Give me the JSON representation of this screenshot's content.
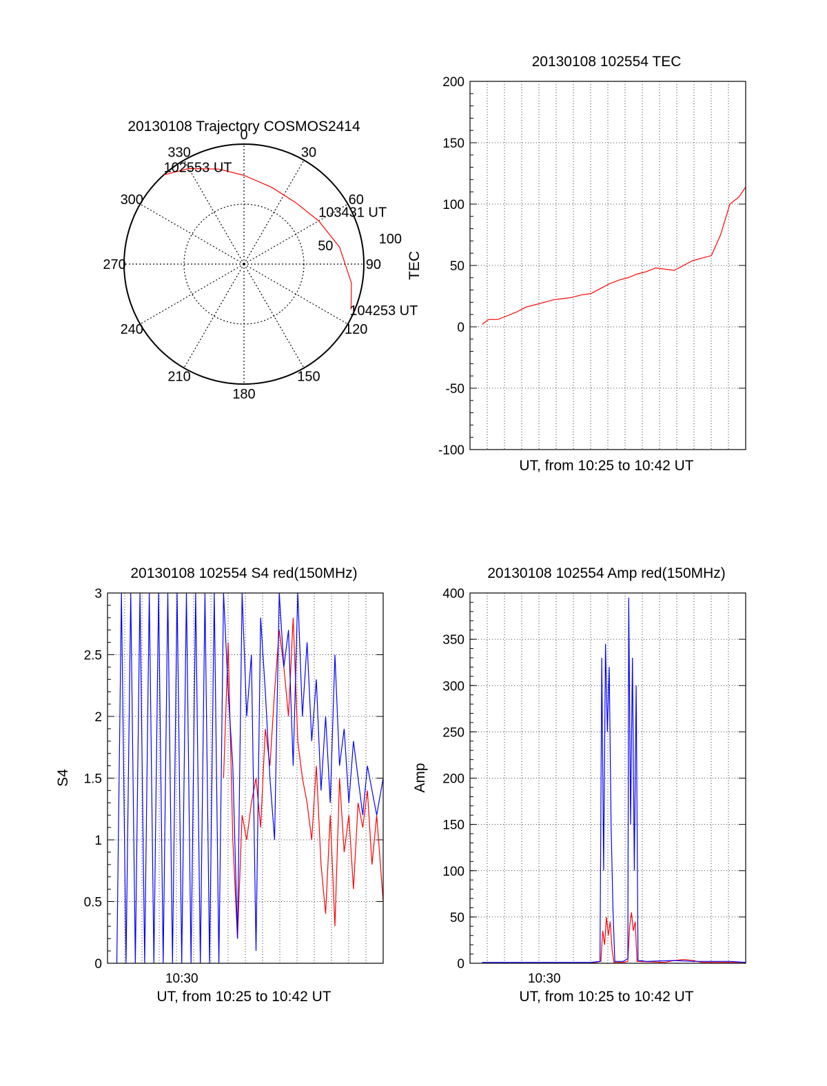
{
  "colors": {
    "red": "#ff0000",
    "blue": "#0000ff",
    "grid": "#000000"
  },
  "chart_data": [
    {
      "id": "trajectory",
      "type": "scatter",
      "subtype": "polar",
      "title": "20130108 Trajectory COSMOS2414",
      "angle_labels": [
        "0",
        "30",
        "60",
        "90",
        "120",
        "150",
        "180",
        "210",
        "240",
        "270",
        "300",
        "330"
      ],
      "radial_labels": [
        "50",
        "100"
      ],
      "rlim": [
        0,
        100
      ],
      "direction": "clockwise, 0 at top",
      "path": [
        {
          "az": 318,
          "zen": 100
        },
        {
          "az": 330,
          "zen": 92
        },
        {
          "az": 345,
          "zen": 82
        },
        {
          "az": 0,
          "zen": 74
        },
        {
          "az": 20,
          "zen": 68
        },
        {
          "az": 40,
          "zen": 67
        },
        {
          "az": 60,
          "zen": 72
        },
        {
          "az": 80,
          "zen": 81
        },
        {
          "az": 100,
          "zen": 91
        },
        {
          "az": 113,
          "zen": 97
        }
      ],
      "annotations": [
        {
          "text": "102553 UT",
          "az": 318,
          "zen": 100
        },
        {
          "text": "103431 UT",
          "az": 57,
          "zen": 70
        },
        {
          "text": "104253 UT",
          "az": 113,
          "zen": 97
        }
      ],
      "grid": true
    },
    {
      "id": "tec",
      "type": "line",
      "title": "20130108 102554 TEC",
      "xlabel": "UT, from 10:25 to 10:42 UT",
      "ylabel": "TEC",
      "ylim": [
        -100,
        200
      ],
      "yticks": [
        "-100",
        "-50",
        "0",
        "50",
        "100",
        "150",
        "200"
      ],
      "xlim": [
        10.42,
        10.717
      ],
      "grid": true,
      "series": [
        {
          "color": "red",
          "x": [
            10.433,
            10.44,
            10.45,
            10.46,
            10.47,
            10.48,
            10.49,
            10.5,
            10.51,
            10.52,
            10.53,
            10.54,
            10.55,
            10.56,
            10.57,
            10.58,
            10.59,
            10.6,
            10.61,
            10.62,
            10.63,
            10.64,
            10.65,
            10.66,
            10.67,
            10.68,
            10.69,
            10.7,
            10.71,
            10.717
          ],
          "y": [
            2,
            6,
            6,
            9,
            12,
            16,
            18,
            20,
            22,
            23,
            24,
            26,
            27,
            31,
            35,
            38,
            40,
            43,
            45,
            48,
            47,
            46,
            50,
            54,
            56,
            58,
            75,
            100,
            106,
            114
          ]
        }
      ]
    },
    {
      "id": "s4",
      "type": "line",
      "title": "20130108 102554 S4 red(150MHz)",
      "xlabel": "UT, from 10:25 to 10:42 UT",
      "xticklabels": [
        {
          "x": 10.5,
          "label": "10:30"
        }
      ],
      "ylabel": "S4",
      "ylim": [
        0,
        3
      ],
      "yticks": [
        "0",
        "0.5",
        "1",
        "1.5",
        "2",
        "2.5",
        "3"
      ],
      "xlim": [
        10.42,
        10.717
      ],
      "grid": true,
      "series": [
        {
          "color": "red",
          "x": [
            10.545,
            10.55,
            10.555,
            10.56,
            10.565,
            10.57,
            10.575,
            10.58,
            10.585,
            10.59,
            10.595,
            10.6,
            10.605,
            10.61,
            10.615,
            10.62,
            10.625,
            10.63,
            10.635,
            10.64,
            10.645,
            10.65,
            10.655,
            10.66,
            10.665,
            10.67,
            10.675,
            10.68,
            10.685,
            10.69,
            10.695,
            10.7,
            10.705,
            10.71,
            10.717
          ],
          "y": [
            1.5,
            2.6,
            1.0,
            0.2,
            1.2,
            1.0,
            1.3,
            1.5,
            1.1,
            1.9,
            1.6,
            2.2,
            2.7,
            2.4,
            2.0,
            2.8,
            1.8,
            1.5,
            1.3,
            1.0,
            1.6,
            0.8,
            0.4,
            1.2,
            0.3,
            1.5,
            0.9,
            1.2,
            0.6,
            1.3,
            1.1,
            1.4,
            0.8,
            1.2,
            0.5
          ]
        },
        {
          "color": "blue",
          "note_for_reader": "",
          "x": [
            10.43,
            10.435,
            10.44,
            10.445,
            10.45,
            10.455,
            10.46,
            10.465,
            10.47,
            10.475,
            10.48,
            10.485,
            10.49,
            10.495,
            10.5,
            10.505,
            10.51,
            10.515,
            10.52,
            10.525,
            10.53,
            10.535,
            10.54,
            10.545,
            10.55,
            10.555,
            10.56,
            10.565,
            10.57,
            10.575,
            10.58,
            10.585,
            10.59,
            10.595,
            10.6,
            10.605,
            10.61,
            10.615,
            10.62,
            10.625,
            10.63,
            10.635,
            10.64,
            10.645,
            10.65,
            10.655,
            10.66,
            10.665,
            10.67,
            10.675,
            10.68,
            10.685,
            10.69,
            10.695,
            10.7,
            10.705,
            10.71,
            10.717
          ],
          "y": [
            0,
            3,
            0,
            3,
            0,
            3,
            0,
            3,
            0,
            3,
            0,
            3,
            0,
            3,
            0,
            3,
            0,
            3,
            0,
            3,
            0,
            3,
            0,
            3,
            2.2,
            1.6,
            0.2,
            3.0,
            2.0,
            2.5,
            0.1,
            2.8,
            2.2,
            1.5,
            1.0,
            3.0,
            2.4,
            2.7,
            1.6,
            3.0,
            2.0,
            2.6,
            1.8,
            2.3,
            1.4,
            2.0,
            1.3,
            2.5,
            1.6,
            1.9,
            1.3,
            1.8,
            1.5,
            1.2,
            1.6,
            1.4,
            1.2,
            1.5
          ]
        }
      ]
    },
    {
      "id": "amp",
      "type": "line",
      "title": "20130108 102554 Amp red(150MHz)",
      "xlabel": "UT, from 10:25 to 10:42 UT",
      "xticklabels": [
        {
          "x": 10.5,
          "label": "10:30"
        }
      ],
      "ylabel": "Amp",
      "ylim": [
        0,
        400
      ],
      "yticks": [
        "0",
        "50",
        "100",
        "150",
        "200",
        "250",
        "300",
        "350",
        "400"
      ],
      "xlim": [
        10.42,
        10.717
      ],
      "grid": true,
      "series": [
        {
          "color": "red",
          "x": [
            10.433,
            10.55,
            10.561,
            10.563,
            10.565,
            10.567,
            10.569,
            10.571,
            10.573,
            10.575,
            10.585,
            10.59,
            10.592,
            10.594,
            10.596,
            10.598,
            10.6,
            10.63,
            10.64,
            10.65,
            10.66,
            10.67,
            10.717
          ],
          "y": [
            0,
            0,
            2,
            35,
            20,
            50,
            30,
            45,
            15,
            1,
            1,
            2,
            40,
            55,
            35,
            45,
            2,
            1,
            3,
            4,
            3,
            1,
            1
          ]
        },
        {
          "color": "blue",
          "x": [
            10.433,
            10.55,
            10.56,
            10.562,
            10.564,
            10.566,
            10.568,
            10.57,
            10.572,
            10.574,
            10.576,
            10.585,
            10.59,
            10.591,
            10.593,
            10.595,
            10.597,
            10.599,
            10.601,
            10.61,
            10.64,
            10.66,
            10.68,
            10.7,
            10.717
          ],
          "y": [
            1,
            1,
            2,
            330,
            100,
            345,
            250,
            320,
            150,
            60,
            2,
            2,
            5,
            395,
            150,
            330,
            100,
            300,
            3,
            2,
            3,
            2,
            2,
            2,
            1
          ]
        }
      ]
    }
  ]
}
